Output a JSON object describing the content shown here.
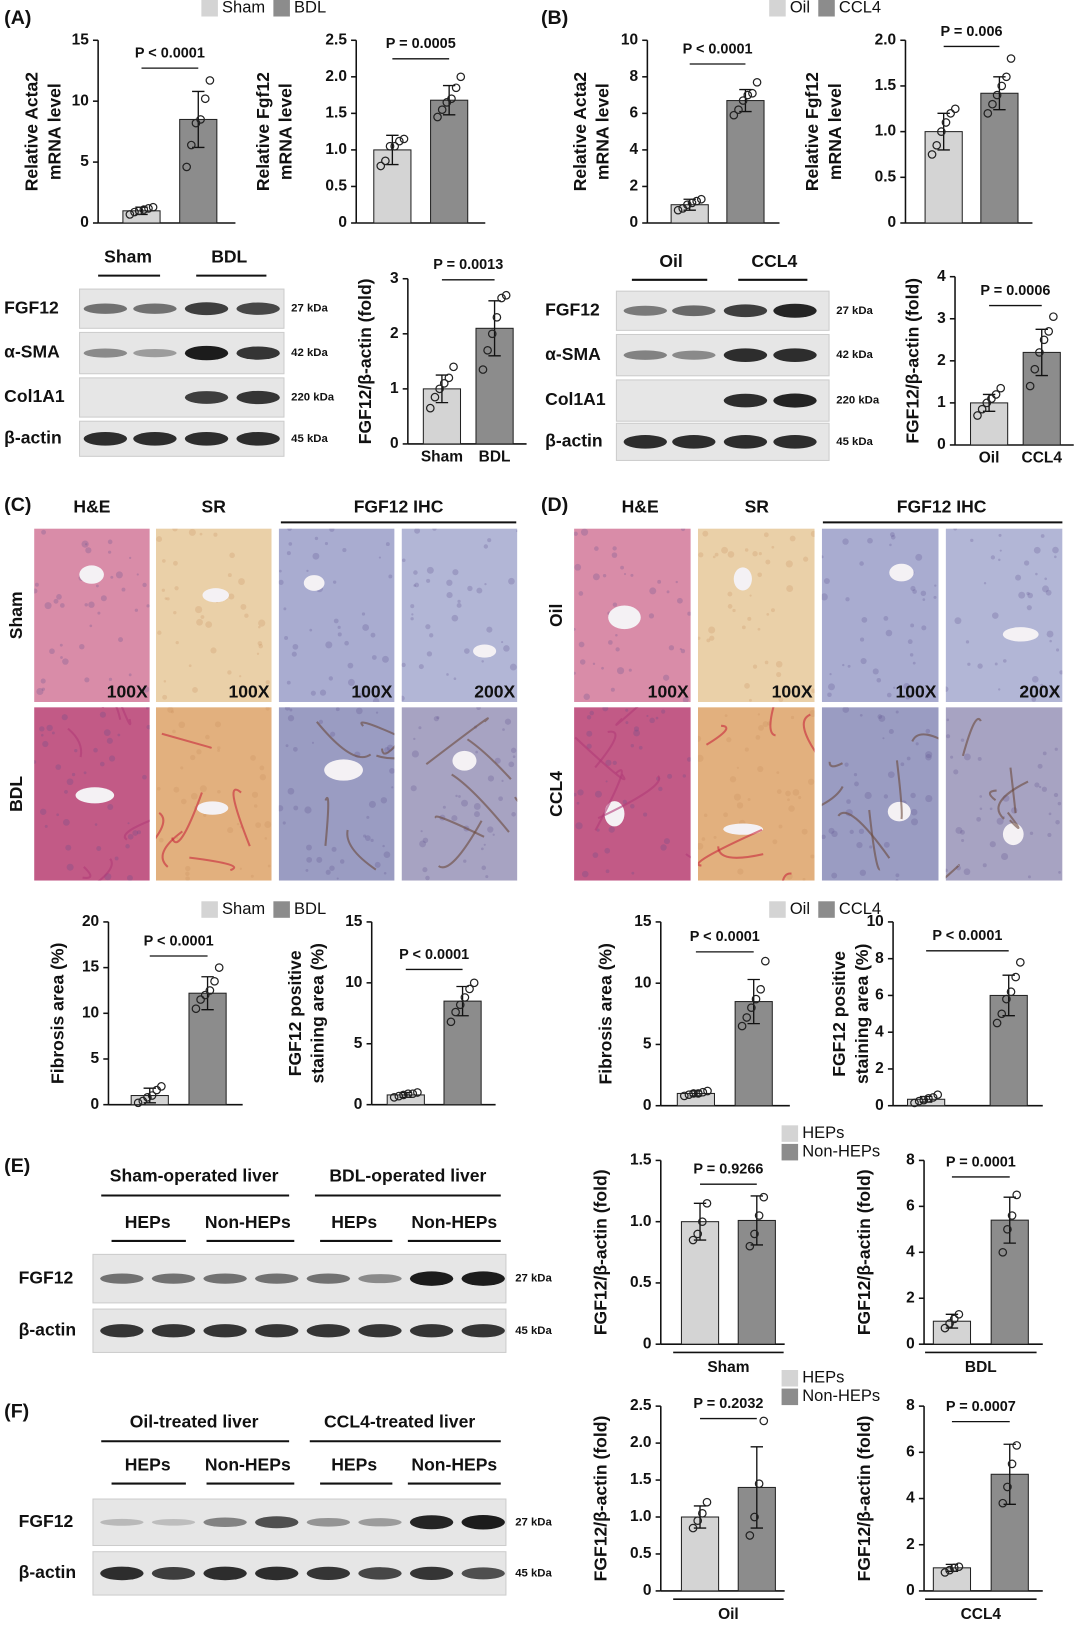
{
  "panel_labels": [
    "(A)",
    "(B)",
    "(C)",
    "(D)",
    "(E)",
    "(F)"
  ],
  "legends": [
    {
      "items": [
        {
          "name": "Sham",
          "color": "#d4d4d4"
        },
        {
          "name": "BDL",
          "color": "#8c8c8c"
        }
      ]
    },
    {
      "items": [
        {
          "name": "Oil",
          "color": "#d4d4d4"
        },
        {
          "name": "CCL4",
          "color": "#8c8c8c"
        }
      ]
    },
    {
      "items": [
        {
          "name": "Sham",
          "color": "#d4d4d4"
        },
        {
          "name": "BDL",
          "color": "#8c8c8c"
        }
      ]
    },
    {
      "items": [
        {
          "name": "Oil",
          "color": "#d4d4d4"
        },
        {
          "name": "CCL4",
          "color": "#8c8c8c"
        }
      ]
    },
    {
      "items": [
        {
          "name": "HEPs",
          "color": "#d4d4d4"
        },
        {
          "name": "Non-HEPs",
          "color": "#8c8c8c"
        }
      ]
    },
    {
      "items": [
        {
          "name": "HEPs",
          "color": "#d4d4d4"
        },
        {
          "name": "Non-HEPs",
          "color": "#8c8c8c"
        }
      ]
    }
  ],
  "blots": [
    {
      "groups": [
        "Sham",
        "BDL"
      ],
      "rows": [
        "FGF12",
        "α-SMA",
        "Col1A1",
        "β-actin"
      ],
      "kda": [
        "27 kDa",
        "42 kDa",
        "220 kDa",
        "45 kDa"
      ]
    },
    {
      "groups": [
        "Oil",
        "CCL4"
      ],
      "rows": [
        "FGF12",
        "α-SMA",
        "Col1A1",
        "β-actin"
      ],
      "kda": [
        "27 kDa",
        "42 kDa",
        "220 kDa",
        "45 kDa"
      ]
    },
    {
      "headers": [
        "Sham-operated liver",
        "BDL-operated liver"
      ],
      "groups": [
        "HEPs",
        "Non-HEPs",
        "HEPs",
        "Non-HEPs"
      ],
      "rows": [
        "FGF12",
        "β-actin"
      ],
      "kda": [
        "27 kDa",
        "45 kDa"
      ]
    },
    {
      "headers": [
        "Oil-treated liver",
        "CCL4-treated liver"
      ],
      "groups": [
        "HEPs",
        "Non-HEPs",
        "HEPs",
        "Non-HEPs"
      ],
      "rows": [
        "FGF12",
        "β-actin"
      ],
      "kda": [
        "27 kDa",
        "45 kDa"
      ]
    }
  ],
  "histology": [
    {
      "stains": [
        "H&E",
        "SR",
        "FGF12 IHC"
      ],
      "rows": [
        "Sham",
        "BDL"
      ],
      "magnifications": [
        "100X",
        "100X",
        "100X",
        "200X"
      ]
    },
    {
      "stains": [
        "H&E",
        "SR",
        "FGF12 IHC"
      ],
      "rows": [
        "Oil",
        "CCL4"
      ],
      "magnifications": [
        "100X",
        "100X",
        "100X",
        "200X"
      ]
    }
  ],
  "chart_data": [
    {
      "type": "bar",
      "ylabel": [
        "Relative Acta2",
        "mRNA level"
      ],
      "values": [
        1.0,
        8.5
      ],
      "errors": [
        0.3,
        2.3
      ],
      "points": [
        [
          0.7,
          0.9,
          1.0,
          1.1,
          1.2,
          1.3
        ],
        [
          4.6,
          6.4,
          8.2,
          8.5,
          10.2,
          11.7
        ]
      ],
      "colors": [
        "#d4d4d4",
        "#8c8c8c"
      ],
      "ylim": [
        0,
        15
      ],
      "yticks": [
        0,
        5,
        10,
        15
      ],
      "pvalue": "P < 0.0001"
    },
    {
      "type": "bar",
      "ylabel": [
        "Relative Fgf12",
        "mRNA level"
      ],
      "values": [
        1.0,
        1.68
      ],
      "errors": [
        0.2,
        0.2
      ],
      "points": [
        [
          0.78,
          0.85,
          1.05,
          1.05,
          1.12,
          1.15
        ],
        [
          1.45,
          1.55,
          1.65,
          1.7,
          1.85,
          2.0
        ]
      ],
      "colors": [
        "#d4d4d4",
        "#8c8c8c"
      ],
      "ylim": [
        0,
        2.5
      ],
      "yticks": [
        0,
        0.5,
        {
          "value": 1,
          "label": "1.0"
        },
        1.5,
        {
          "value": 2,
          "label": "2.0"
        },
        2.5
      ],
      "pvalue": "P = 0.0005"
    },
    {
      "type": "bar",
      "ylabel": [
        "FGF12/β-actin (fold)"
      ],
      "categories": [
        "Sham",
        "BDL"
      ],
      "values": [
        1.0,
        2.1
      ],
      "errors": [
        0.25,
        0.5
      ],
      "points": [
        [
          0.65,
          0.85,
          1.0,
          1.1,
          1.2,
          1.4
        ],
        [
          1.35,
          1.7,
          2.0,
          2.3,
          2.65,
          2.7
        ]
      ],
      "colors": [
        "#d4d4d4",
        "#8c8c8c"
      ],
      "ylim": [
        0,
        3
      ],
      "yticks": [
        0,
        1,
        2,
        3
      ],
      "pvalue": "P = 0.0013"
    },
    {
      "type": "bar",
      "ylabel": [
        "Relative Acta2",
        "mRNA level"
      ],
      "values": [
        1.0,
        6.7
      ],
      "errors": [
        0.3,
        0.6
      ],
      "points": [
        [
          0.7,
          0.8,
          1.0,
          1.1,
          1.2,
          1.3
        ],
        [
          5.9,
          6.2,
          6.7,
          7.0,
          7.1,
          7.7
        ]
      ],
      "colors": [
        "#d4d4d4",
        "#8c8c8c"
      ],
      "ylim": [
        0,
        10
      ],
      "yticks": [
        0,
        2,
        4,
        6,
        8,
        10
      ],
      "pvalue": "P < 0.0001"
    },
    {
      "type": "bar",
      "ylabel": [
        "Relative Fgf12",
        "mRNA level"
      ],
      "values": [
        1.0,
        1.42
      ],
      "errors": [
        0.2,
        0.18
      ],
      "points": [
        [
          0.75,
          0.85,
          1.0,
          1.1,
          1.2,
          1.25
        ],
        [
          1.2,
          1.3,
          1.4,
          1.5,
          1.6,
          1.8
        ]
      ],
      "colors": [
        "#d4d4d4",
        "#8c8c8c"
      ],
      "ylim": [
        0,
        2
      ],
      "yticks": [
        0,
        0.5,
        {
          "value": 1,
          "label": "1.0"
        },
        1.5,
        {
          "value": 2,
          "label": "2.0"
        }
      ],
      "pvalue": "P = 0.006"
    },
    {
      "type": "bar",
      "ylabel": [
        "FGF12/β-actin (fold)"
      ],
      "categories": [
        "Oil",
        "CCL4"
      ],
      "values": [
        1.0,
        2.2
      ],
      "errors": [
        0.2,
        0.55
      ],
      "points": [
        [
          0.7,
          0.85,
          1.0,
          1.1,
          1.2,
          1.35
        ],
        [
          1.4,
          1.8,
          2.2,
          2.5,
          2.7,
          3.05
        ]
      ],
      "colors": [
        "#d4d4d4",
        "#8c8c8c"
      ],
      "ylim": [
        0,
        4
      ],
      "yticks": [
        0,
        1,
        2,
        3,
        4
      ],
      "pvalue": "P = 0.0006"
    },
    {
      "type": "bar",
      "ylabel": [
        "Fibrosis area (%)"
      ],
      "values": [
        1.0,
        12.2
      ],
      "errors": [
        0.8,
        1.8
      ],
      "points": [
        [
          0.2,
          0.4,
          0.8,
          1.0,
          1.6,
          2.0
        ],
        [
          10.5,
          11.5,
          12.0,
          12.5,
          13.5,
          15.0
        ]
      ],
      "colors": [
        "#d4d4d4",
        "#8c8c8c"
      ],
      "ylim": [
        0,
        20
      ],
      "yticks": [
        0,
        5,
        10,
        15,
        20
      ],
      "pvalue": "P < 0.0001"
    },
    {
      "type": "bar",
      "ylabel": [
        "FGF12 positive",
        "staining area (%)"
      ],
      "values": [
        0.8,
        8.5
      ],
      "errors": [
        0.2,
        1.2
      ],
      "points": [
        [
          0.6,
          0.7,
          0.8,
          0.9,
          0.9,
          1.0
        ],
        [
          6.8,
          7.6,
          8.2,
          8.8,
          9.5,
          10.0
        ]
      ],
      "colors": [
        "#d4d4d4",
        "#8c8c8c"
      ],
      "ylim": [
        0,
        15
      ],
      "yticks": [
        0,
        5,
        10,
        15
      ],
      "pvalue": "P < 0.0001"
    },
    {
      "type": "bar",
      "ylabel": [
        "Fibrosis area (%)"
      ],
      "values": [
        1.0,
        8.5
      ],
      "errors": [
        0.2,
        1.8
      ],
      "points": [
        [
          0.8,
          0.9,
          1.0,
          1.0,
          1.1,
          1.2
        ],
        [
          6.5,
          7.2,
          8.0,
          8.7,
          9.5,
          11.8
        ]
      ],
      "colors": [
        "#d4d4d4",
        "#8c8c8c"
      ],
      "ylim": [
        0,
        15
      ],
      "yticks": [
        0,
        5,
        10,
        15
      ],
      "pvalue": "P < 0.0001"
    },
    {
      "type": "bar",
      "ylabel": [
        "FGF12 positive",
        "staining area (%)"
      ],
      "values": [
        0.35,
        6.0
      ],
      "errors": [
        0.15,
        1.1
      ],
      "points": [
        [
          0.15,
          0.25,
          0.3,
          0.4,
          0.45,
          0.6
        ],
        [
          4.5,
          5.0,
          5.8,
          6.2,
          7.0,
          7.8
        ]
      ],
      "colors": [
        "#d4d4d4",
        "#8c8c8c"
      ],
      "ylim": [
        0,
        10
      ],
      "yticks": [
        0,
        2,
        4,
        6,
        8,
        10
      ],
      "pvalue": "P < 0.0001"
    },
    {
      "type": "bar",
      "ylabel": [
        "FGF12/β-actin (fold)"
      ],
      "xlabel": "Sham",
      "values": [
        1.0,
        1.01
      ],
      "errors": [
        0.15,
        0.2
      ],
      "points": [
        [
          0.85,
          0.9,
          1.0,
          1.15
        ],
        [
          0.8,
          0.9,
          1.05,
          1.2
        ]
      ],
      "colors": [
        "#d4d4d4",
        "#8c8c8c"
      ],
      "ylim": [
        0,
        1.5
      ],
      "yticks": [
        0,
        0.5,
        {
          "value": 1,
          "label": "1.0"
        },
        1.5
      ],
      "pvalue": "P = 0.9266"
    },
    {
      "type": "bar",
      "ylabel": [
        "FGF12/β-actin (fold)"
      ],
      "xlabel": "BDL",
      "values": [
        1.0,
        5.4
      ],
      "errors": [
        0.3,
        1.0
      ],
      "points": [
        [
          0.7,
          0.9,
          1.1,
          1.3
        ],
        [
          4.0,
          5.0,
          5.6,
          6.5
        ]
      ],
      "colors": [
        "#d4d4d4",
        "#8c8c8c"
      ],
      "ylim": [
        0,
        8
      ],
      "yticks": [
        0,
        2,
        4,
        6,
        8
      ],
      "pvalue": "P = 0.0001"
    },
    {
      "type": "bar",
      "ylabel": [
        "FGF12/β-actin (fold)"
      ],
      "xlabel": "Oil",
      "values": [
        1.0,
        1.4
      ],
      "errors": [
        0.15,
        0.55
      ],
      "points": [
        [
          0.85,
          0.95,
          1.05,
          1.2
        ],
        [
          0.75,
          1.0,
          1.45,
          2.3
        ]
      ],
      "colors": [
        "#d4d4d4",
        "#8c8c8c"
      ],
      "ylim": [
        0,
        2.5
      ],
      "yticks": [
        0,
        0.5,
        {
          "value": 1,
          "label": "1.0"
        },
        1.5,
        {
          "value": 2,
          "label": "2.0"
        },
        2.5
      ],
      "pvalue": "P = 0.2032"
    },
    {
      "type": "bar",
      "ylabel": [
        "FGF12/β-actin (fold)"
      ],
      "xlabel": "CCL4",
      "values": [
        1.0,
        5.05
      ],
      "errors": [
        0.15,
        1.3
      ],
      "points": [
        [
          0.8,
          0.9,
          1.0,
          1.05
        ],
        [
          3.8,
          4.5,
          5.5,
          6.3
        ]
      ],
      "colors": [
        "#d4d4d4",
        "#8c8c8c"
      ],
      "ylim": [
        0,
        8
      ],
      "yticks": [
        0,
        2,
        4,
        6,
        8
      ],
      "pvalue": "P = 0.0007"
    }
  ]
}
